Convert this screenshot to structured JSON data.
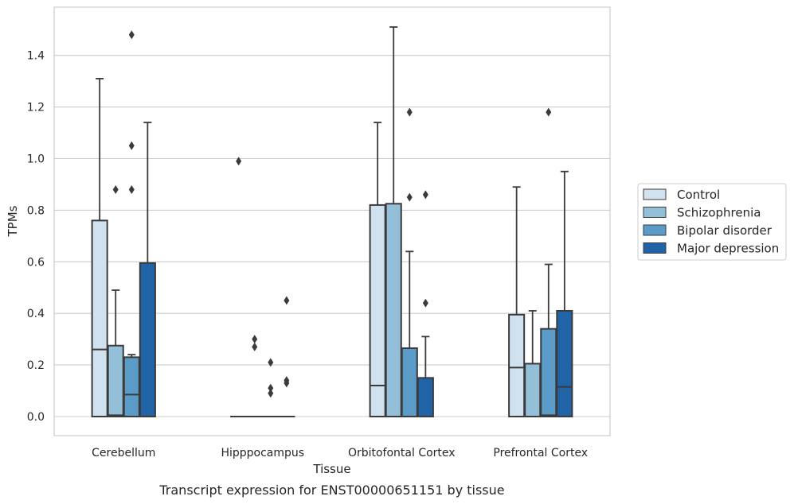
{
  "chart_data": {
    "type": "box",
    "title": "",
    "caption": "Transcript expression for ENST00000651151 by tissue",
    "xlabel": "Tissue",
    "ylabel": "TPMs",
    "ylim": [
      -0.07,
      1.6
    ],
    "yticks": [
      "0.0",
      "0.2",
      "0.4",
      "0.6",
      "0.8",
      "1.0",
      "1.2",
      "1.4"
    ],
    "grid": true,
    "legend_position": "right",
    "categories": [
      "Cerebellum",
      "Hipppocampus",
      "Orbitofontal Cortex",
      "Prefrontal Cortex"
    ],
    "series": [
      {
        "name": "Control",
        "color": "#d0e1f0",
        "boxes": [
          {
            "category": "Cerebellum",
            "q1": 0.0,
            "median": 0.26,
            "q3": 0.76,
            "whisker_low": 0.0,
            "whisker_high": 1.31,
            "outliers": []
          },
          {
            "category": "Hipppocampus",
            "q1": 0.0,
            "median": 0.0,
            "q3": 0.0,
            "whisker_low": 0.0,
            "whisker_high": 0.0,
            "outliers": [
              0.99
            ]
          },
          {
            "category": "Orbitofontal Cortex",
            "q1": 0.0,
            "median": 0.12,
            "q3": 0.82,
            "whisker_low": 0.0,
            "whisker_high": 1.14,
            "outliers": []
          },
          {
            "category": "Prefrontal Cortex",
            "q1": 0.0,
            "median": 0.19,
            "q3": 0.395,
            "whisker_low": 0.0,
            "whisker_high": 0.89,
            "outliers": []
          }
        ]
      },
      {
        "name": "Schizophrenia",
        "color": "#93bfd9",
        "boxes": [
          {
            "category": "Cerebellum",
            "q1": 0.0,
            "median": 0.005,
            "q3": 0.275,
            "whisker_low": 0.0,
            "whisker_high": 0.49,
            "outliers": [
              0.88
            ]
          },
          {
            "category": "Hipppocampus",
            "q1": 0.0,
            "median": 0.0,
            "q3": 0.0,
            "whisker_low": 0.0,
            "whisker_high": 0.0,
            "outliers": [
              0.27,
              0.3
            ]
          },
          {
            "category": "Orbitofontal Cortex",
            "q1": 0.0,
            "median": 0.0,
            "q3": 0.825,
            "whisker_low": 0.0,
            "whisker_high": 1.51,
            "outliers": []
          },
          {
            "category": "Prefrontal Cortex",
            "q1": 0.0,
            "median": 0.0,
            "q3": 0.205,
            "whisker_low": 0.0,
            "whisker_high": 0.41,
            "outliers": []
          }
        ]
      },
      {
        "name": "Bipolar disorder",
        "color": "#5a9bc8",
        "boxes": [
          {
            "category": "Cerebellum",
            "q1": 0.0,
            "median": 0.085,
            "q3": 0.23,
            "whisker_low": 0.0,
            "whisker_high": 0.24,
            "outliers": [
              0.88,
              1.05,
              1.48
            ]
          },
          {
            "category": "Hipppocampus",
            "q1": 0.0,
            "median": 0.0,
            "q3": 0.0,
            "whisker_low": 0.0,
            "whisker_high": 0.0,
            "outliers": [
              0.09,
              0.11,
              0.21
            ]
          },
          {
            "category": "Orbitofontal Cortex",
            "q1": 0.0,
            "median": 0.0,
            "q3": 0.265,
            "whisker_low": 0.0,
            "whisker_high": 0.64,
            "outliers": [
              0.85,
              1.18
            ]
          },
          {
            "category": "Prefrontal Cortex",
            "q1": 0.0,
            "median": 0.005,
            "q3": 0.34,
            "whisker_low": 0.0,
            "whisker_high": 0.59,
            "outliers": [
              1.18
            ]
          }
        ]
      },
      {
        "name": "Major depression",
        "color": "#2163a7",
        "boxes": [
          {
            "category": "Cerebellum",
            "q1": 0.0,
            "median": 0.0,
            "q3": 0.595,
            "whisker_low": 0.0,
            "whisker_high": 1.14,
            "outliers": []
          },
          {
            "category": "Hipppocampus",
            "q1": 0.0,
            "median": 0.0,
            "q3": 0.0,
            "whisker_low": 0.0,
            "whisker_high": 0.0,
            "outliers": [
              0.13,
              0.14,
              0.45
            ]
          },
          {
            "category": "Orbitofontal Cortex",
            "q1": 0.0,
            "median": 0.0,
            "q3": 0.15,
            "whisker_low": 0.0,
            "whisker_high": 0.31,
            "outliers": [
              0.44,
              0.86
            ]
          },
          {
            "category": "Prefrontal Cortex",
            "q1": 0.0,
            "median": 0.115,
            "q3": 0.41,
            "whisker_low": 0.0,
            "whisker_high": 0.95,
            "outliers": []
          }
        ]
      }
    ]
  }
}
